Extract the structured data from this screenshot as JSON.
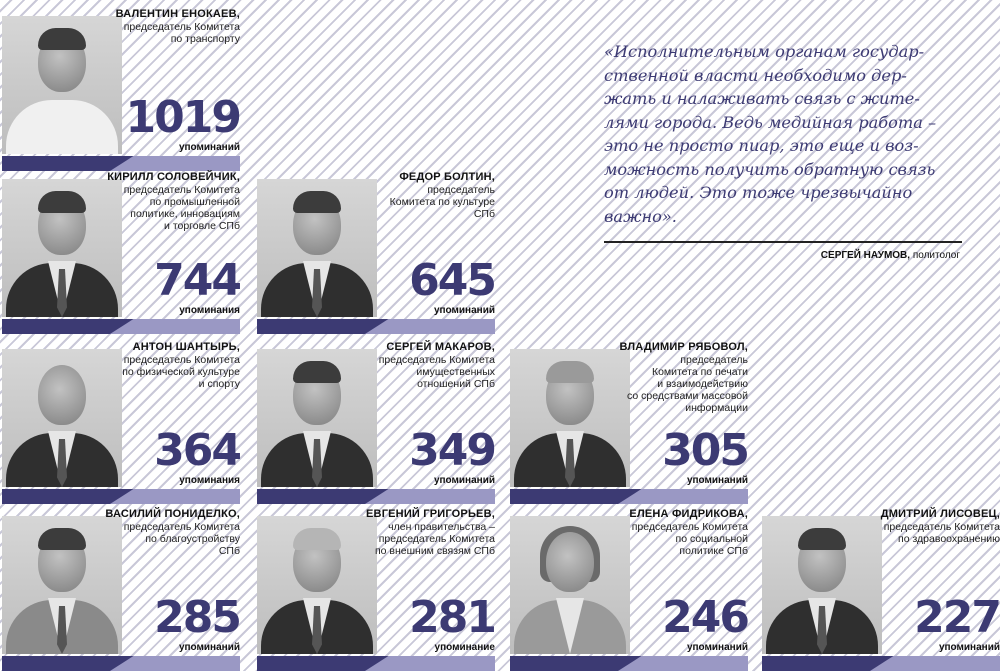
{
  "quote": {
    "text": "«Исполнительным органам государ-\nственной власти необходимо дер-\nжать и налаживать связь с жите-\nлями города. Ведь медийная работа –\nэто не просто пиар, это еще и воз-\nможность получить обратную связь\nот людей. Это тоже чрезвычайно\nважно».",
    "author_name": "СЕРГЕЙ НАУМОВ,",
    "author_role": "политолог"
  },
  "people": [
    {
      "name": "ВАЛЕНТИН ЕНОКАЕВ,",
      "position": "председатель Комитета\nпо транспорту",
      "count": "1019",
      "mentions": "упоминаний"
    },
    {
      "name": "КИРИЛЛ СОЛОВЕЙЧИК,",
      "position": "председатель Комитета\nпо промышленной\nполитике, инновациям\nи торговле СПб",
      "count": "744",
      "mentions": "упоминания"
    },
    {
      "name": "ФЕДОР БОЛТИН,",
      "position": "председатель\nКомитета по культуре\nСПб",
      "count": "645",
      "mentions": "упоминаний"
    },
    {
      "name": "АНТОН ШАНТЫРЬ,",
      "position": "председатель Комитета\nпо физической культуре\nи спорту",
      "count": "364",
      "mentions": "упоминания"
    },
    {
      "name": "СЕРГЕЙ МАКАРОВ,",
      "position": "председатель Комитета\nимущественных\nотношений СПб",
      "count": "349",
      "mentions": "упоминаний"
    },
    {
      "name": "ВЛАДИМИР РЯБОВОЛ,",
      "position": "председатель\nКомитета по печати\nи взаимодействию\nсо средствами массовой\nинформации",
      "count": "305",
      "mentions": "упоминаний"
    },
    {
      "name": "ВАСИЛИЙ ПОНИДЕЛКО,",
      "position": "председатель Комитета\nпо благоустройству\nСПб",
      "count": "285",
      "mentions": "упоминаний"
    },
    {
      "name": "ЕВГЕНИЙ ГРИГОРЬЕВ,",
      "position": "член правительства –\nпредседатель Комитета\nпо внешним связям СПб",
      "count": "281",
      "mentions": "упоминание"
    },
    {
      "name": "ЕЛЕНА ФИДРИКОВА,",
      "position": "председатель Комитета\nпо социальной\nполитике СПб",
      "count": "246",
      "mentions": "упоминаний"
    },
    {
      "name": "ДМИТРИЙ ЛИСОВЕЦ,",
      "position": "председатель Комитета\nпо здравоохранению",
      "count": "227",
      "mentions": "упоминаний"
    }
  ],
  "colors": {
    "accent": "#3c3a73",
    "accent_light": "#9a98c4",
    "stripe": "#c9c8d8"
  }
}
